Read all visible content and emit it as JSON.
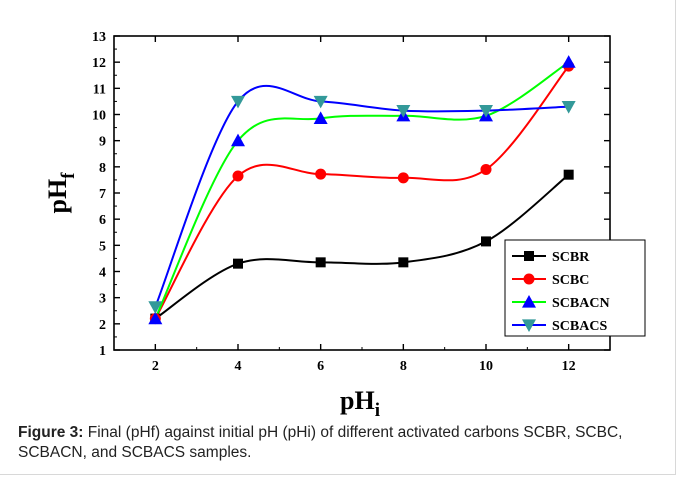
{
  "figure": {
    "caption_label": "Figure 3:",
    "caption_text": " Final (pHf) against initial pH (pHi) of different activated carbons SCBR, SCBC, SCBACN, and SCBACS samples."
  },
  "chart_data": {
    "type": "line",
    "title": "",
    "xlabel": "pH",
    "xlabel_sub": "i",
    "ylabel": "pH",
    "ylabel_sub": "f",
    "xlim": [
      1,
      13
    ],
    "ylim": [
      1,
      13
    ],
    "xticks": [
      2,
      4,
      6,
      8,
      10,
      12
    ],
    "yticks": [
      1,
      2,
      3,
      4,
      5,
      6,
      7,
      8,
      9,
      10,
      11,
      12,
      13
    ],
    "grid": false,
    "legend_position": "bottom-right",
    "x": [
      2,
      4,
      6,
      8,
      10,
      12
    ],
    "series": [
      {
        "name": "SCBR",
        "marker": "square",
        "marker_color": "#000000",
        "line_color": "#000000",
        "values": [
          2.2,
          4.3,
          4.35,
          4.35,
          5.15,
          7.7
        ]
      },
      {
        "name": "SCBC",
        "marker": "circle",
        "marker_color": "#ff0000",
        "line_color": "#ff0000",
        "values": [
          2.2,
          7.65,
          7.72,
          7.58,
          7.9,
          11.85
        ]
      },
      {
        "name": "SCBACN",
        "marker": "triangle-up",
        "marker_color": "#0000ff",
        "line_color": "#00ff00",
        "values": [
          2.2,
          9.0,
          9.85,
          9.95,
          9.95,
          12.0
        ]
      },
      {
        "name": "SCBACS",
        "marker": "triangle-down",
        "marker_color": "#339999",
        "line_color": "#0000ff",
        "values": [
          2.65,
          10.5,
          10.5,
          10.15,
          10.15,
          10.3
        ]
      }
    ]
  }
}
